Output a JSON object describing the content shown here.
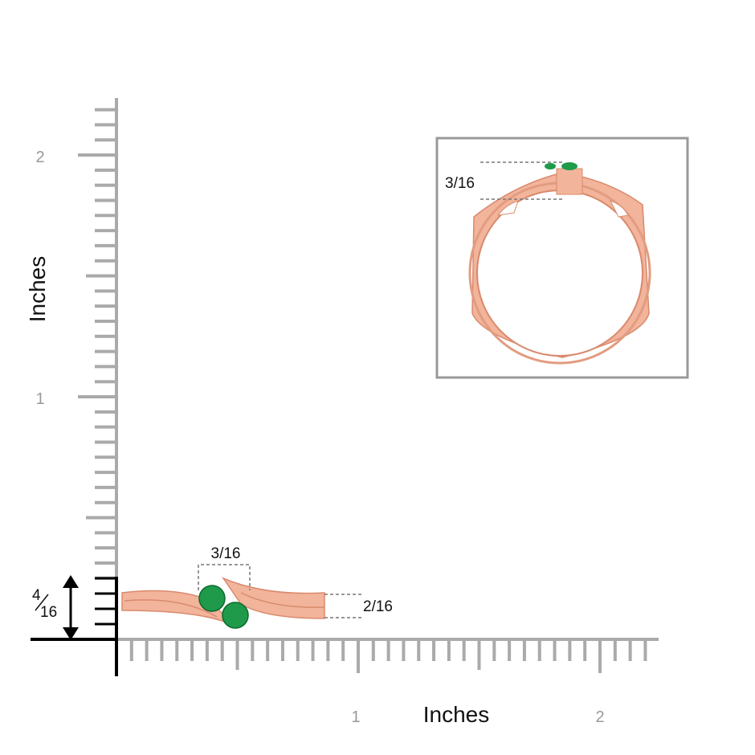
{
  "y_axis": {
    "label": "Inches",
    "ticks": [
      "1",
      "2"
    ]
  },
  "x_axis": {
    "label": "Inches",
    "ticks": [
      "1",
      "2"
    ]
  },
  "dimensions": {
    "top_width": "3/16",
    "band_height": "2/16",
    "ring_height": {
      "numerator": "4",
      "denominator": "16"
    }
  },
  "inset": {
    "dimension": "3/16"
  }
}
